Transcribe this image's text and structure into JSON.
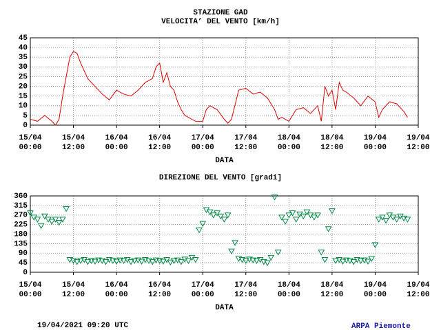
{
  "header": {
    "title": "STAZIONE GAD"
  },
  "footer": {
    "timestamp": "19/04/2021 09:20 UTC",
    "source": "ARPA Piemonte"
  },
  "chart_data": [
    {
      "type": "line",
      "title": "VELOCITA’ DEL VENTO [km/h]",
      "xlabel": "DATA",
      "grid": true,
      "x": [
        "15/04 00:00",
        "15/04 02:00",
        "15/04 04:00",
        "15/04 06:00",
        "15/04 07:00",
        "15/04 08:00",
        "15/04 09:00",
        "15/04 10:00",
        "15/04 11:00",
        "15/04 12:00",
        "15/04 13:00",
        "15/04 14:00",
        "15/04 15:00",
        "15/04 16:00",
        "15/04 18:00",
        "15/04 20:00",
        "15/04 22:00",
        "16/04 00:00",
        "16/04 02:00",
        "16/04 04:00",
        "16/04 06:00",
        "16/04 08:00",
        "16/04 10:00",
        "16/04 11:00",
        "16/04 12:00",
        "16/04 13:00",
        "16/04 14:00",
        "16/04 15:00",
        "16/04 16:00",
        "16/04 17:00",
        "16/04 18:00",
        "16/04 19:00",
        "16/04 20:00",
        "16/04 22:00",
        "17/04 00:00",
        "17/04 01:00",
        "17/04 02:00",
        "17/04 04:00",
        "17/04 06:00",
        "17/04 07:00",
        "17/04 08:00",
        "17/04 10:00",
        "17/04 12:00",
        "17/04 14:00",
        "17/04 16:00",
        "17/04 18:00",
        "17/04 20:00",
        "17/04 21:00",
        "17/04 22:00",
        "18/04 00:00",
        "18/04 02:00",
        "18/04 04:00",
        "18/04 06:00",
        "18/04 08:00",
        "18/04 09:00",
        "18/04 10:00",
        "18/04 11:00",
        "18/04 12:00",
        "18/04 13:00",
        "18/04 14:00",
        "18/04 15:00",
        "18/04 16:00",
        "18/04 18:00",
        "18/04 20:00",
        "18/04 22:00",
        "19/04 00:00",
        "19/04 01:00",
        "19/04 02:00",
        "19/04 04:00",
        "19/04 06:00",
        "19/04 08:00",
        "19/04 09:00"
      ],
      "series": [
        {
          "color": "#dd0000",
          "values": [
            3,
            2,
            5,
            2,
            0,
            3,
            15,
            25,
            35,
            38,
            37,
            32,
            28,
            24,
            20,
            16,
            13,
            18,
            16,
            15,
            18,
            22,
            24,
            30,
            32,
            22,
            27,
            20,
            18,
            12,
            8,
            5,
            4,
            2,
            2,
            8,
            10,
            8,
            3,
            1,
            3,
            18,
            19,
            16,
            17,
            14,
            8,
            3,
            4,
            2,
            8,
            9,
            6,
            10,
            2,
            20,
            15,
            18,
            8,
            22,
            18,
            17,
            14,
            10,
            15,
            12,
            4,
            8,
            12,
            11,
            7,
            4
          ]
        }
      ],
      "xlim": [
        "15/04 00:00",
        "19/04 12:00"
      ],
      "xticks": [
        "15/04 00:00",
        "15/04 12:00",
        "16/04 00:00",
        "16/04 12:00",
        "17/04 00:00",
        "17/04 12:00",
        "18/04 00:00",
        "18/04 12:00",
        "19/04 00:00",
        "19/04 12:00"
      ],
      "ylim": [
        0,
        45
      ],
      "yticks": [
        0,
        5,
        10,
        15,
        20,
        25,
        30,
        35,
        40,
        45
      ]
    },
    {
      "type": "scatter",
      "title": "DIREZIONE DEL VENTO [gradi]",
      "xlabel": "DATA",
      "grid": true,
      "marker": "triangle-down",
      "x": [
        "15/04 00:00",
        "15/04 01:00",
        "15/04 02:00",
        "15/04 03:00",
        "15/04 04:00",
        "15/04 05:00",
        "15/04 06:00",
        "15/04 07:00",
        "15/04 08:00",
        "15/04 09:00",
        "15/04 10:00",
        "15/04 11:00",
        "15/04 12:00",
        "15/04 13:00",
        "15/04 14:00",
        "15/04 15:00",
        "15/04 16:00",
        "15/04 17:00",
        "15/04 18:00",
        "15/04 19:00",
        "15/04 20:00",
        "15/04 21:00",
        "15/04 22:00",
        "15/04 23:00",
        "16/04 00:00",
        "16/04 01:00",
        "16/04 02:00",
        "16/04 03:00",
        "16/04 04:00",
        "16/04 05:00",
        "16/04 06:00",
        "16/04 07:00",
        "16/04 08:00",
        "16/04 09:00",
        "16/04 10:00",
        "16/04 11:00",
        "16/04 12:00",
        "16/04 13:00",
        "16/04 14:00",
        "16/04 15:00",
        "16/04 16:00",
        "16/04 17:00",
        "16/04 18:00",
        "16/04 19:00",
        "16/04 20:00",
        "16/04 21:00",
        "16/04 22:00",
        "16/04 23:00",
        "17/04 00:00",
        "17/04 01:00",
        "17/04 02:00",
        "17/04 03:00",
        "17/04 04:00",
        "17/04 05:00",
        "17/04 06:00",
        "17/04 07:00",
        "17/04 08:00",
        "17/04 09:00",
        "17/04 10:00",
        "17/04 11:00",
        "17/04 12:00",
        "17/04 13:00",
        "17/04 14:00",
        "17/04 15:00",
        "17/04 16:00",
        "17/04 17:00",
        "17/04 18:00",
        "17/04 19:00",
        "17/04 20:00",
        "17/04 21:00",
        "17/04 22:00",
        "17/04 23:00",
        "18/04 00:00",
        "18/04 01:00",
        "18/04 02:00",
        "18/04 03:00",
        "18/04 04:00",
        "18/04 05:00",
        "18/04 06:00",
        "18/04 07:00",
        "18/04 08:00",
        "18/04 09:00",
        "18/04 10:00",
        "18/04 11:00",
        "18/04 12:00",
        "18/04 13:00",
        "18/04 14:00",
        "18/04 15:00",
        "18/04 16:00",
        "18/04 17:00",
        "18/04 18:00",
        "18/04 19:00",
        "18/04 20:00",
        "18/04 21:00",
        "18/04 22:00",
        "18/04 23:00",
        "19/04 00:00",
        "19/04 01:00",
        "19/04 02:00",
        "19/04 03:00",
        "19/04 04:00",
        "19/04 05:00",
        "19/04 06:00",
        "19/04 07:00",
        "19/04 08:00",
        "19/04 09:00"
      ],
      "series": [
        {
          "color": "#008844",
          "values": [
            280,
            260,
            250,
            220,
            265,
            250,
            240,
            250,
            235,
            250,
            300,
            60,
            55,
            50,
            55,
            60,
            50,
            55,
            52,
            58,
            55,
            50,
            60,
            55,
            52,
            58,
            55,
            60,
            50,
            55,
            58,
            52,
            60,
            55,
            50,
            58,
            55,
            52,
            60,
            48,
            55,
            58,
            50,
            62,
            55,
            70,
            60,
            200,
            230,
            295,
            285,
            270,
            280,
            265,
            250,
            270,
            100,
            140,
            65,
            60,
            55,
            62,
            58,
            55,
            60,
            50,
            45,
            70,
            355,
            95,
            260,
            240,
            270,
            280,
            250,
            275,
            265,
            285,
            270,
            260,
            270,
            95,
            60,
            205,
            290,
            55,
            60,
            52,
            58,
            55,
            50,
            60,
            55,
            58,
            52,
            65,
            130,
            250,
            260,
            245,
            270,
            260,
            250,
            265,
            255,
            250
          ]
        }
      ],
      "xlim": [
        "15/04 00:00",
        "19/04 12:00"
      ],
      "xticks": [
        "15/04 00:00",
        "15/04 12:00",
        "16/04 00:00",
        "16/04 12:00",
        "17/04 00:00",
        "17/04 12:00",
        "18/04 00:00",
        "18/04 12:00",
        "19/04 00:00",
        "19/04 12:00"
      ],
      "ylim": [
        0,
        360
      ],
      "yticks": [
        0,
        45,
        90,
        135,
        180,
        225,
        270,
        315,
        360
      ]
    }
  ]
}
